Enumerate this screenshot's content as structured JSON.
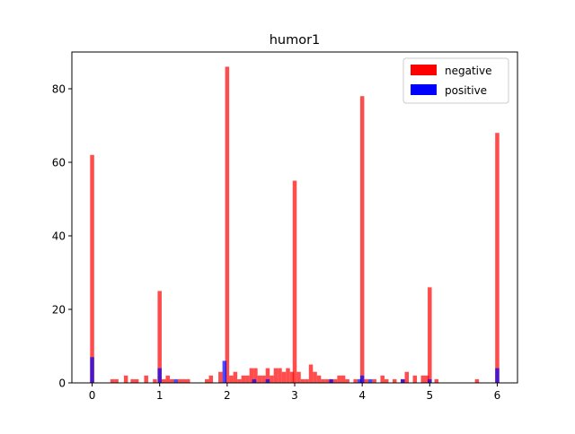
{
  "chart_data": {
    "type": "bar",
    "title": "humor1",
    "xlabel": "",
    "ylabel": "",
    "xlim": [
      -0.3,
      6.3
    ],
    "ylim": [
      0,
      90
    ],
    "grid": false,
    "legend_placement": "top-right",
    "bin_width": 0.06,
    "x_ticks": [
      0,
      1,
      2,
      3,
      4,
      5,
      6
    ],
    "x_tick_labels": [
      "0",
      "1",
      "2",
      "3",
      "4",
      "5",
      "6"
    ],
    "y_ticks": [
      0,
      20,
      40,
      60,
      80
    ],
    "y_tick_labels": [
      "0",
      "20",
      "40",
      "60",
      "80"
    ],
    "series": [
      {
        "name": "negative",
        "color": "#ff0000",
        "opacity": 0.7,
        "points": [
          {
            "x": 0.0,
            "y": 62
          },
          {
            "x": 0.3,
            "y": 1
          },
          {
            "x": 0.36,
            "y": 1
          },
          {
            "x": 0.5,
            "y": 2
          },
          {
            "x": 0.6,
            "y": 1
          },
          {
            "x": 0.66,
            "y": 1
          },
          {
            "x": 0.8,
            "y": 2
          },
          {
            "x": 0.93,
            "y": 1
          },
          {
            "x": 1.0,
            "y": 25
          },
          {
            "x": 1.06,
            "y": 1
          },
          {
            "x": 1.12,
            "y": 2
          },
          {
            "x": 1.18,
            "y": 1
          },
          {
            "x": 1.3,
            "y": 1
          },
          {
            "x": 1.36,
            "y": 1
          },
          {
            "x": 1.42,
            "y": 1
          },
          {
            "x": 1.7,
            "y": 1
          },
          {
            "x": 1.76,
            "y": 2
          },
          {
            "x": 1.9,
            "y": 3
          },
          {
            "x": 2.0,
            "y": 86
          },
          {
            "x": 2.06,
            "y": 2
          },
          {
            "x": 2.12,
            "y": 3
          },
          {
            "x": 2.18,
            "y": 1
          },
          {
            "x": 2.24,
            "y": 2
          },
          {
            "x": 2.3,
            "y": 2
          },
          {
            "x": 2.36,
            "y": 4
          },
          {
            "x": 2.42,
            "y": 4
          },
          {
            "x": 2.48,
            "y": 2
          },
          {
            "x": 2.54,
            "y": 2
          },
          {
            "x": 2.6,
            "y": 4
          },
          {
            "x": 2.66,
            "y": 2
          },
          {
            "x": 2.72,
            "y": 4
          },
          {
            "x": 2.78,
            "y": 4
          },
          {
            "x": 2.84,
            "y": 3
          },
          {
            "x": 2.9,
            "y": 4
          },
          {
            "x": 2.96,
            "y": 3
          },
          {
            "x": 3.0,
            "y": 55
          },
          {
            "x": 3.06,
            "y": 3
          },
          {
            "x": 3.12,
            "y": 1
          },
          {
            "x": 3.18,
            "y": 1
          },
          {
            "x": 3.24,
            "y": 5
          },
          {
            "x": 3.3,
            "y": 3
          },
          {
            "x": 3.36,
            "y": 2
          },
          {
            "x": 3.42,
            "y": 1
          },
          {
            "x": 3.48,
            "y": 1
          },
          {
            "x": 3.54,
            "y": 1
          },
          {
            "x": 3.6,
            "y": 1
          },
          {
            "x": 3.66,
            "y": 2
          },
          {
            "x": 3.72,
            "y": 2
          },
          {
            "x": 3.78,
            "y": 1
          },
          {
            "x": 3.9,
            "y": 1
          },
          {
            "x": 4.0,
            "y": 78
          },
          {
            "x": 4.06,
            "y": 1
          },
          {
            "x": 4.18,
            "y": 1
          },
          {
            "x": 4.3,
            "y": 2
          },
          {
            "x": 4.36,
            "y": 1
          },
          {
            "x": 4.48,
            "y": 1
          },
          {
            "x": 4.6,
            "y": 1
          },
          {
            "x": 4.66,
            "y": 3
          },
          {
            "x": 4.78,
            "y": 2
          },
          {
            "x": 4.9,
            "y": 2
          },
          {
            "x": 4.96,
            "y": 2
          },
          {
            "x": 5.0,
            "y": 26
          },
          {
            "x": 5.1,
            "y": 1
          },
          {
            "x": 5.7,
            "y": 1
          },
          {
            "x": 6.0,
            "y": 68
          }
        ]
      },
      {
        "name": "positive",
        "color": "#0000ff",
        "opacity": 0.7,
        "points": [
          {
            "x": 0.0,
            "y": 7
          },
          {
            "x": 1.0,
            "y": 4
          },
          {
            "x": 1.24,
            "y": 1
          },
          {
            "x": 1.96,
            "y": 6
          },
          {
            "x": 2.4,
            "y": 1
          },
          {
            "x": 2.6,
            "y": 1
          },
          {
            "x": 3.54,
            "y": 1
          },
          {
            "x": 3.96,
            "y": 1
          },
          {
            "x": 4.0,
            "y": 2
          },
          {
            "x": 4.12,
            "y": 1
          },
          {
            "x": 4.6,
            "y": 1
          },
          {
            "x": 5.0,
            "y": 1
          },
          {
            "x": 6.0,
            "y": 4
          }
        ]
      }
    ]
  }
}
